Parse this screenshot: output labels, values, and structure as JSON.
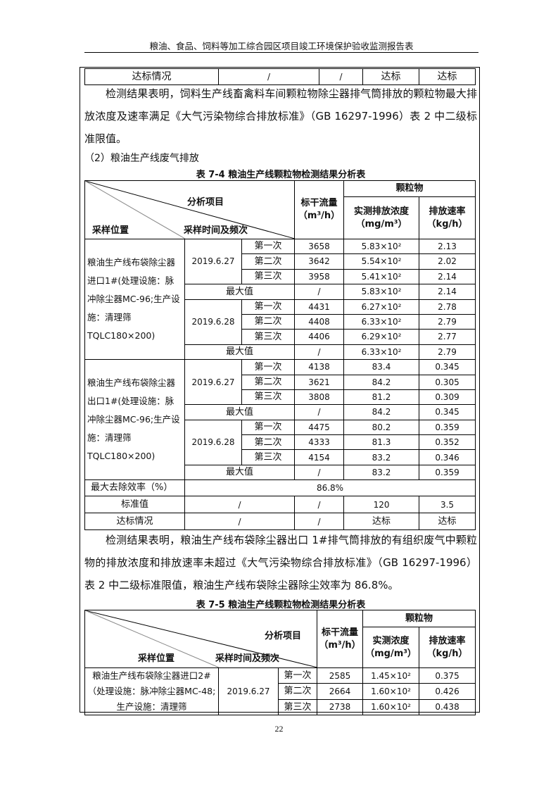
{
  "header": {
    "title": "粮油、食品、饲料等加工综合园区项目竣工环境保护验收监测报告表"
  },
  "top_row": {
    "label": "达标情况",
    "c1": "/",
    "c2": "/",
    "c3": "达标",
    "c4": "达标"
  },
  "para1": "检测结果表明，饲料生产线畜禽料车间颗粒物除尘器排气筒排放的颗粒物最大排放浓度及速率满足《大气污染物综合排放标准》（GB 16297-1996）表 2 中二级标准限值。",
  "section2": "（2）粮油生产线废气排放",
  "table74": {
    "title": "表 7-4  粮油生产线颗粒物检测结果分析表",
    "h_item": "分析项目",
    "h_loc": "采样位置",
    "h_time": "采样时间及频次",
    "h_flow": "标干流量",
    "h_flow_unit": "（m³/h）",
    "h_pm": "颗粒物",
    "h_conc": "实测排放浓度",
    "h_conc_unit": "（mg/m³）",
    "h_rate": "排放速率",
    "h_rate_unit": "（kg/h）",
    "groups": [
      {
        "location": "粮油生产线布袋除尘器进口1#(处理设施：脉冲除尘器MC-96;生产设施：清理筛TQLC180×200)",
        "days": [
          {
            "date": "2019.6.27",
            "rows": [
              [
                "第一次",
                "3658",
                "5.83×10²",
                "2.13"
              ],
              [
                "第二次",
                "3642",
                "5.54×10²",
                "2.02"
              ],
              [
                "第三次",
                "3958",
                "5.41×10²",
                "2.14"
              ]
            ],
            "max": [
              "最大值",
              "/",
              "5.83×10²",
              "2.14"
            ]
          },
          {
            "date": "2019.6.28",
            "rows": [
              [
                "第一次",
                "4431",
                "6.27×10²",
                "2.78"
              ],
              [
                "第二次",
                "4408",
                "6.33×10²",
                "2.79"
              ],
              [
                "第三次",
                "4406",
                "6.29×10²",
                "2.77"
              ]
            ],
            "max": [
              "最大值",
              "/",
              "6.33×10²",
              "2.79"
            ]
          }
        ]
      },
      {
        "location": "粮油生产线布袋除尘器出口1#(处理设施：脉冲除尘器MC-96;生产设施：清理筛TQLC180×200)",
        "days": [
          {
            "date": "2019.6.27",
            "rows": [
              [
                "第一次",
                "4138",
                "83.4",
                "0.345"
              ],
              [
                "第二次",
                "3621",
                "84.2",
                "0.305"
              ],
              [
                "第三次",
                "3808",
                "81.2",
                "0.309"
              ]
            ],
            "max": [
              "最大值",
              "/",
              "84.2",
              "0.345"
            ]
          },
          {
            "date": "2019.6.28",
            "rows": [
              [
                "第一次",
                "4475",
                "80.2",
                "0.359"
              ],
              [
                "第二次",
                "4333",
                "81.3",
                "0.352"
              ],
              [
                "第三次",
                "4154",
                "83.2",
                "0.346"
              ]
            ],
            "max": [
              "最大值",
              "/",
              "83.2",
              "0.359"
            ]
          }
        ]
      }
    ],
    "efficiency": {
      "label": "最大去除效率（%）",
      "value": "86.8%"
    },
    "standard": {
      "label": "标准值",
      "c1": "/",
      "c2": "/",
      "c3": "120",
      "c4": "3.5"
    },
    "compliance": {
      "label": "达标情况",
      "c1": "/",
      "c2": "/",
      "c3": "达标",
      "c4": "达标"
    }
  },
  "para2": "检测结果表明，粮油生产线布袋除尘器出口 1#排气筒排放的有组织废气中颗粒物的排放浓度和排放速率未超过《大气污染物综合排放标准》（GB 16297-1996）表 2 中二级标准限值，粮油生产线布袋除尘器除尘效率为 86.8%。",
  "table75": {
    "title": "表 7-5  粮油生产线颗粒物检测结果分析表",
    "h_item": "分析项目",
    "h_loc": "采样位置",
    "h_time": "采样时间及频次",
    "h_flow": "标干流量",
    "h_flow_unit": "（m³/h）",
    "h_pm": "颗粒物",
    "h_conc": "实测浓度",
    "h_conc_unit": "（mg/m³）",
    "h_rate": "排放速率",
    "h_rate_unit": "（kg/h）",
    "location": "粮油生产线布袋除尘器进口2#（处理设施：脉冲除尘器MC-48;生产设施：清理筛",
    "date": "2019.6.27",
    "rows": [
      [
        "第一次",
        "2585",
        "1.45×10²",
        "0.375"
      ],
      [
        "第二次",
        "2664",
        "1.60×10²",
        "0.426"
      ],
      [
        "第三次",
        "2738",
        "1.60×10²",
        "0.438"
      ]
    ]
  },
  "page_number": "22"
}
